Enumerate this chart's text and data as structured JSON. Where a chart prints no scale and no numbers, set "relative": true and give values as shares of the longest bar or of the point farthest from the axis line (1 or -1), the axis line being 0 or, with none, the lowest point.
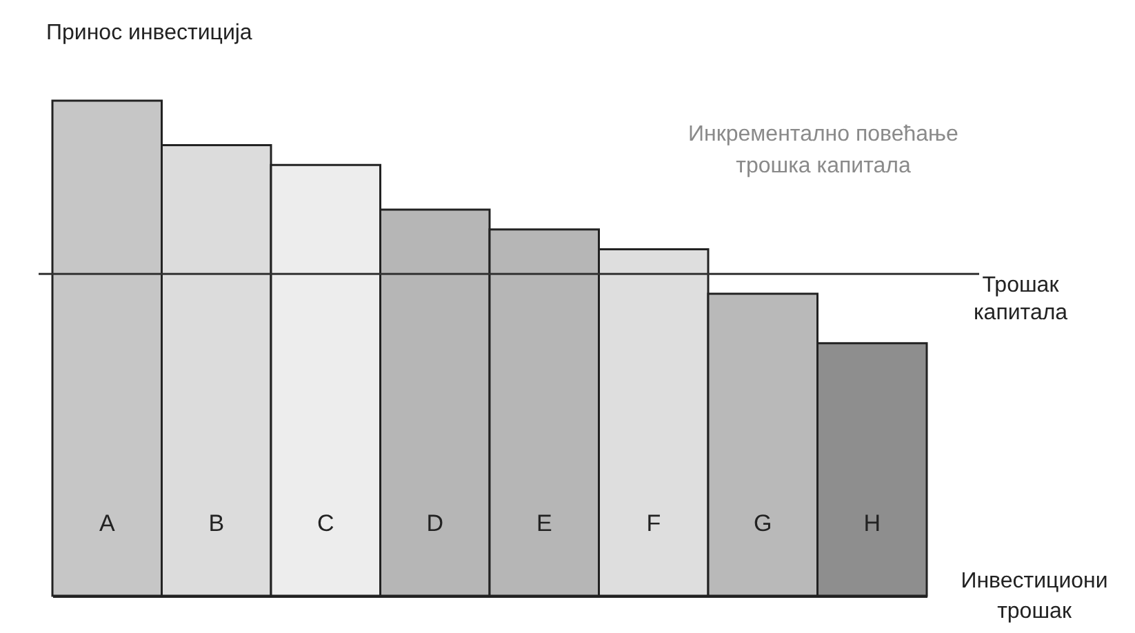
{
  "chart_data": {
    "type": "bar",
    "relative": true,
    "xlabel": "Инвестициони трошак",
    "ylabel": "Принос инвестиција",
    "categories": [
      "A",
      "B",
      "C",
      "D",
      "E",
      "F",
      "G",
      "H"
    ],
    "values": [
      1,
      0.91,
      0.87,
      0.78,
      0.74,
      0.7,
      0.61,
      0.51
    ],
    "colors": [
      "#c6c6c6",
      "#dcdcdc",
      "#ededed",
      "#b6b6b6",
      "#b6b6b6",
      "#dedede",
      "#b9b9b9",
      "#8e8e8e"
    ],
    "ref_lines": [
      {
        "axis": "y",
        "value": 0.65,
        "label": "Трошак капитала",
        "color": "#333333"
      }
    ],
    "annotations": [
      "Инкрементално повећање трошка капитала"
    ],
    "grid": false,
    "legend": false
  }
}
